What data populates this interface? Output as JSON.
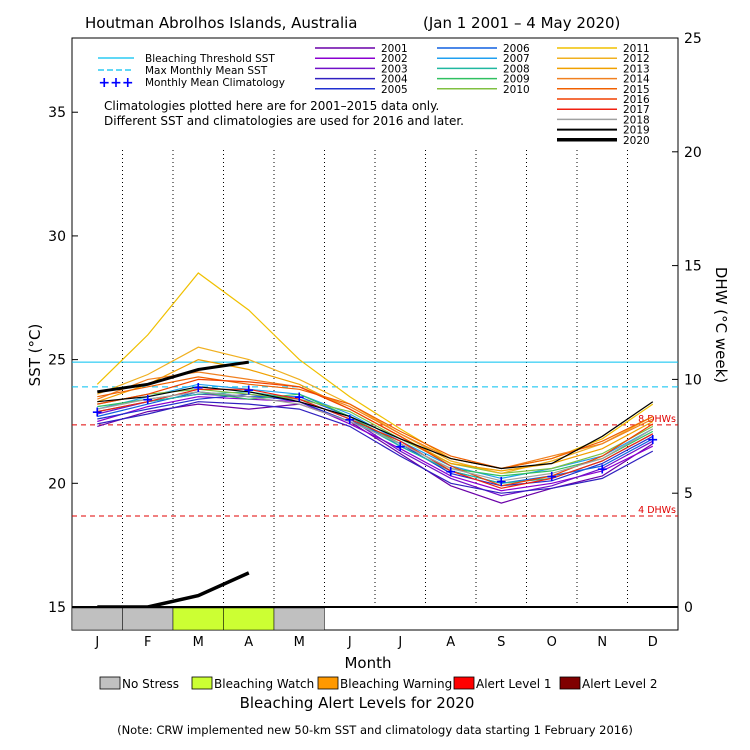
{
  "chart_data": {
    "type": "line",
    "title": "Houtman Abrolhos Islands, Australia",
    "date_range": "(Jan 1 2001 – 4 May 2020)",
    "xlabel": "Month",
    "ylabel_left": "SST (°C)",
    "ylabel_right": "DHW (°C week)",
    "ylim_left": [
      15,
      38
    ],
    "ylim_right": [
      0,
      25
    ],
    "yticks_left": [
      "15",
      "20",
      "25",
      "30",
      "35"
    ],
    "yticks_right": [
      "0",
      "5",
      "10",
      "15",
      "20",
      "25"
    ],
    "months": [
      "J",
      "F",
      "M",
      "A",
      "M",
      "J",
      "J",
      "A",
      "S",
      "O",
      "N",
      "D"
    ],
    "bleaching_threshold_sst": 24.9,
    "max_monthly_mean_sst": 23.9,
    "dhw_reference_lines": [
      {
        "value": 8,
        "label": "8 DHWs",
        "color": "#e00000"
      },
      {
        "value": 4,
        "label": "4 DHWs",
        "color": "#e00000"
      }
    ],
    "reference_legend": [
      {
        "label": "Bleaching Threshold SST",
        "color": "#00c0f0",
        "style": "solid"
      },
      {
        "label": "Max Monthly Mean SST",
        "color": "#00c0f0",
        "style": "dashed"
      },
      {
        "label": "Monthly Mean Climatology",
        "color": "#0000ff",
        "style": "plus"
      }
    ],
    "monthly_mean_climatology": [
      22.9,
      23.4,
      23.9,
      23.8,
      23.5,
      22.6,
      21.5,
      20.5,
      20.1,
      20.3,
      20.6,
      21.8
    ],
    "notes": [
      "Climatologies plotted here are for 2001–2015 data only.",
      "Different SST and climatologies are used for 2016 and later."
    ],
    "series": [
      {
        "name": "2001",
        "color": "#6a00a8",
        "values": [
          22.3,
          22.9,
          23.2,
          23.0,
          23.2,
          22.5,
          21.2,
          19.9,
          19.2,
          19.8,
          20.3,
          21.6
        ]
      },
      {
        "name": "2002",
        "color": "#8a00d0",
        "values": [
          22.5,
          23.1,
          23.5,
          23.4,
          23.3,
          22.4,
          21.4,
          20.3,
          19.7,
          20.0,
          20.5,
          21.5
        ]
      },
      {
        "name": "2003",
        "color": "#7010c8",
        "values": [
          22.8,
          23.3,
          23.6,
          23.5,
          23.4,
          22.6,
          21.3,
          20.2,
          19.5,
          19.9,
          20.6,
          21.7
        ]
      },
      {
        "name": "2004",
        "color": "#3020c0",
        "values": [
          22.4,
          22.8,
          23.3,
          23.2,
          23.0,
          22.3,
          21.1,
          20.0,
          19.6,
          19.8,
          20.2,
          21.3
        ]
      },
      {
        "name": "2005",
        "color": "#2030d0",
        "values": [
          22.6,
          23.0,
          23.4,
          23.6,
          23.3,
          22.5,
          21.6,
          20.4,
          19.9,
          20.1,
          20.8,
          21.9
        ]
      },
      {
        "name": "2006",
        "color": "#1060e0",
        "values": [
          22.7,
          23.2,
          23.7,
          23.5,
          23.5,
          22.7,
          21.5,
          20.5,
          20.0,
          20.3,
          20.7,
          21.8
        ]
      },
      {
        "name": "2007",
        "color": "#20a0f0",
        "values": [
          23.0,
          23.5,
          24.0,
          23.8,
          23.6,
          22.8,
          21.7,
          20.7,
          20.2,
          20.6,
          21.1,
          22.2
        ]
      },
      {
        "name": "2008",
        "color": "#20b8a0",
        "values": [
          22.9,
          23.3,
          23.6,
          23.7,
          23.4,
          22.6,
          21.5,
          20.5,
          20.0,
          20.2,
          20.9,
          22.0
        ]
      },
      {
        "name": "2009",
        "color": "#30c060",
        "values": [
          23.1,
          23.4,
          23.7,
          23.4,
          23.6,
          22.7,
          21.6,
          20.6,
          20.3,
          20.5,
          21.0,
          22.1
        ]
      },
      {
        "name": "2010",
        "color": "#80c040",
        "values": [
          23.2,
          23.6,
          23.8,
          23.6,
          23.4,
          22.9,
          21.8,
          20.8,
          20.4,
          20.6,
          21.2,
          22.3
        ]
      },
      {
        "name": "2011",
        "color": "#f0c000",
        "values": [
          24.0,
          26.0,
          28.5,
          27.0,
          25.0,
          23.5,
          22.2,
          21.0,
          20.6,
          21.0,
          21.8,
          23.2
        ]
      },
      {
        "name": "2012",
        "color": "#f0b020",
        "values": [
          23.6,
          24.4,
          25.5,
          25.0,
          24.2,
          23.2,
          22.0,
          20.9,
          20.4,
          20.9,
          21.6,
          22.7
        ]
      },
      {
        "name": "2013",
        "color": "#f0a000",
        "values": [
          23.3,
          24.0,
          25.0,
          24.6,
          24.0,
          23.0,
          21.9,
          20.8,
          20.5,
          20.8,
          21.4,
          22.5
        ]
      },
      {
        "name": "2014",
        "color": "#f08020",
        "values": [
          23.4,
          24.2,
          24.5,
          24.2,
          23.9,
          23.1,
          22.0,
          21.0,
          20.6,
          21.1,
          21.6,
          22.6
        ]
      },
      {
        "name": "2015",
        "color": "#f06000",
        "values": [
          23.5,
          23.9,
          24.3,
          24.0,
          23.8,
          23.2,
          22.1,
          21.1,
          20.6,
          21.0,
          21.7,
          22.7
        ]
      },
      {
        "name": "2016",
        "color": "#f04000",
        "values": [
          23.2,
          23.6,
          24.2,
          24.1,
          23.9,
          23.0,
          21.9,
          20.7,
          19.9,
          20.3,
          21.1,
          22.4
        ]
      },
      {
        "name": "2017",
        "color": "#f02010",
        "values": [
          22.9,
          23.3,
          23.8,
          23.8,
          23.4,
          22.6,
          21.7,
          20.5,
          19.8,
          20.2,
          20.9,
          22.0
        ]
      },
      {
        "name": "2018",
        "color": "#a0a0a0",
        "values": [
          23.0,
          23.4,
          23.7,
          23.5,
          23.2,
          22.5,
          21.6,
          20.6,
          20.1,
          20.4,
          21.0,
          22.2
        ]
      },
      {
        "name": "2019",
        "color": "#000000",
        "values": [
          23.3,
          23.5,
          23.9,
          23.7,
          23.3,
          22.7,
          21.8,
          21.0,
          20.6,
          20.8,
          21.9,
          23.3
        ]
      },
      {
        "name": "2020",
        "color": "#000000",
        "values": [
          23.7,
          24.0,
          24.6,
          24.9,
          null,
          null,
          null,
          null,
          null,
          null,
          null,
          null
        ]
      }
    ],
    "dhw_series_2020": [
      0,
      0,
      0.5,
      1.5,
      null,
      null,
      null,
      null,
      null,
      null,
      null,
      null
    ],
    "alert_strip_2020": [
      "no-stress",
      "no-stress",
      "watch",
      "watch",
      "no-stress",
      null,
      null,
      null,
      null,
      null,
      null,
      null
    ],
    "alert_legend_title": "Bleaching Alert Levels for 2020",
    "alert_legend": [
      {
        "label": "No Stress",
        "color": "#c0c0c0"
      },
      {
        "label": "Bleaching Watch",
        "color": "#ccff33"
      },
      {
        "label": "Bleaching Warning",
        "color": "#ff9900"
      },
      {
        "label": "Alert Level 1",
        "color": "#ff0000"
      },
      {
        "label": "Alert Level 2",
        "color": "#800000"
      }
    ],
    "footnote": "(Note: CRW implemented new 50-km SST and climatology data starting 1 February 2016)"
  }
}
